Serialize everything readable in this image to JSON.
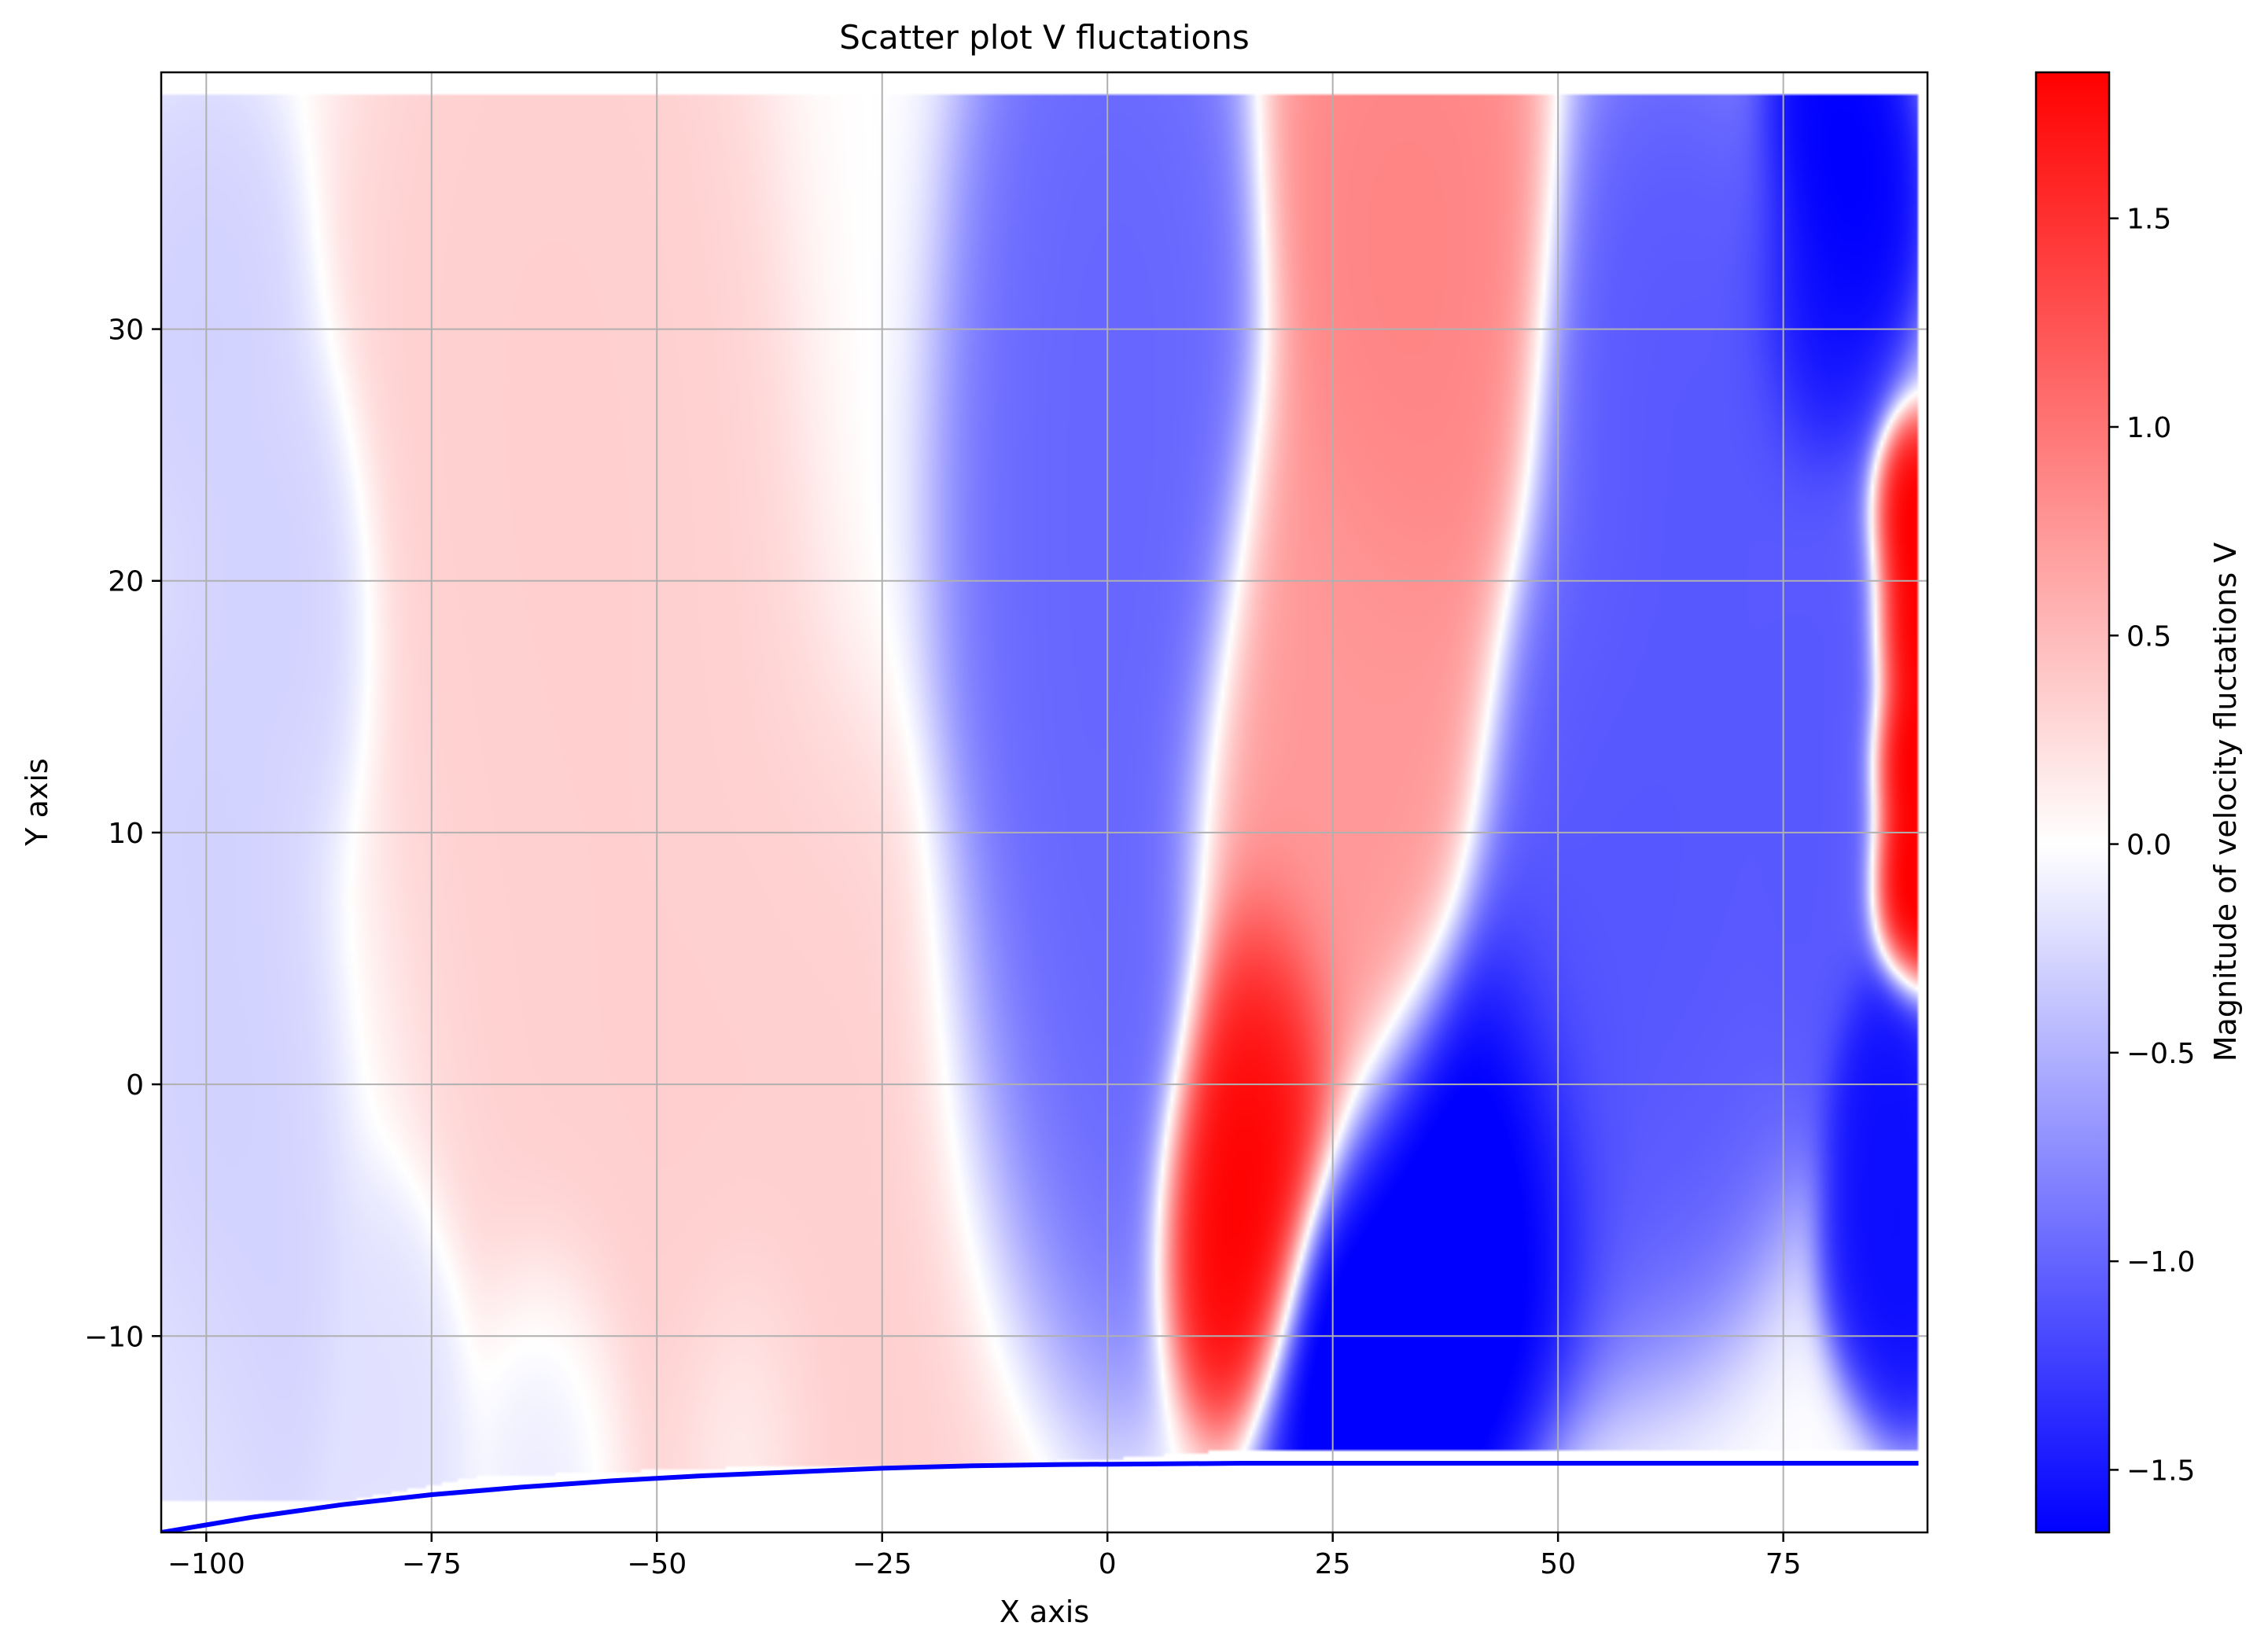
{
  "chart_data": {
    "type": "heatmap",
    "title": "Scatter plot V fluctations",
    "xlabel": "X axis",
    "ylabel": "Y axis",
    "xlim": [
      -105,
      91
    ],
    "ylim": [
      -17.8,
      40.2
    ],
    "x_ticks": [
      {
        "value": -100,
        "label": "−100"
      },
      {
        "value": -75,
        "label": "−75"
      },
      {
        "value": -50,
        "label": "−50"
      },
      {
        "value": -25,
        "label": "−25"
      },
      {
        "value": 0,
        "label": "0"
      },
      {
        "value": 25,
        "label": "25"
      },
      {
        "value": 50,
        "label": "50"
      },
      {
        "value": 75,
        "label": "75"
      }
    ],
    "y_ticks": [
      {
        "value": -10,
        "label": "−10"
      },
      {
        "value": 0,
        "label": "0"
      },
      {
        "value": 10,
        "label": "10"
      },
      {
        "value": 20,
        "label": "20"
      },
      {
        "value": 30,
        "label": "30"
      }
    ],
    "grid": true,
    "colorbar": {
      "label": "Magnitude of velocity fluctations V",
      "colormap": "bwr",
      "range": [
        -1.65,
        1.85
      ],
      "ticks": [
        {
          "value": 1.5,
          "label": "1.5"
        },
        {
          "value": 1.0,
          "label": "1.0"
        },
        {
          "value": 0.5,
          "label": "0.5"
        },
        {
          "value": 0.0,
          "label": "0.0"
        },
        {
          "value": -0.5,
          "label": "−0.5"
        },
        {
          "value": -1.0,
          "label": "−1.0"
        },
        {
          "value": -1.5,
          "label": "−1.5"
        }
      ],
      "colors": {
        "low": "#0000ff",
        "mid": "#ffffff",
        "high": "#ff0000"
      }
    },
    "field_domain": {
      "x": [
        -105,
        90
      ],
      "y_top": 39.3
    },
    "field_lower_boundary": [
      [
        -105,
        -16.6
      ],
      [
        -85,
        -16.6
      ],
      [
        -70,
        -15.6
      ],
      [
        -40,
        -15.2
      ],
      [
        -20,
        -15.2
      ],
      [
        0,
        -14.9
      ],
      [
        15,
        -14.5
      ],
      [
        30,
        -14.5
      ],
      [
        60,
        -14.5
      ],
      [
        80,
        -14.5
      ],
      [
        90,
        -14.5
      ]
    ],
    "field_bands": [
      {
        "name": "left-pale-blue",
        "value": -0.3,
        "points": [
          [
            -100,
            30
          ],
          [
            -100,
            10
          ],
          [
            -95,
            -10
          ],
          [
            -98,
            0
          ],
          [
            -92,
            20
          ]
        ],
        "radius": 7
      },
      {
        "name": "large-pale-red-band",
        "value": 0.35,
        "points": [
          [
            -60,
            35
          ],
          [
            -60,
            25
          ],
          [
            -58,
            15
          ],
          [
            -55,
            5
          ],
          [
            -50,
            -2
          ],
          [
            -40,
            -7
          ],
          [
            -30,
            -9
          ],
          [
            -20,
            -8
          ],
          [
            -65,
            30
          ],
          [
            -57,
            20
          ],
          [
            -47,
            0
          ],
          [
            -35,
            -8
          ]
        ],
        "radius": 12
      },
      {
        "name": "blue-band-mid",
        "value": -1.0,
        "points": [
          [
            0,
            35
          ],
          [
            -2,
            25
          ],
          [
            -2,
            15
          ],
          [
            -1,
            7
          ],
          [
            -3,
            2
          ],
          [
            -7,
            -2
          ],
          [
            3,
            30
          ],
          [
            3,
            20
          ]
        ],
        "radius": 9
      },
      {
        "name": "red-column-top",
        "value": 0.9,
        "points": [
          [
            30,
            36
          ],
          [
            33,
            30
          ],
          [
            31,
            24
          ],
          [
            37,
            35
          ]
        ],
        "radius": 8
      },
      {
        "name": "red-mid",
        "value": 0.75,
        "points": [
          [
            25,
            18
          ],
          [
            28,
            12
          ],
          [
            22,
            12
          ],
          [
            27,
            6
          ],
          [
            30,
            15
          ],
          [
            20,
            8
          ]
        ],
        "radius": 8
      },
      {
        "name": "red-core",
        "value": 1.9,
        "points": [
          [
            18,
            3
          ],
          [
            16,
            -2
          ],
          [
            14,
            -6
          ],
          [
            16,
            0
          ],
          [
            19,
            1
          ],
          [
            13,
            -4
          ]
        ],
        "radius": 5
      },
      {
        "name": "blue-right-band",
        "value": -1.1,
        "points": [
          [
            62,
            30
          ],
          [
            65,
            20
          ],
          [
            60,
            12
          ],
          [
            70,
            25
          ],
          [
            55,
            8
          ],
          [
            70,
            10
          ],
          [
            52,
            3
          ],
          [
            62,
            4
          ]
        ],
        "radius": 9
      },
      {
        "name": "blue-core",
        "value": -1.8,
        "points": [
          [
            35,
            -5
          ],
          [
            32,
            -10
          ],
          [
            40,
            -4
          ],
          [
            28,
            -12
          ],
          [
            45,
            -2
          ],
          [
            36,
            -8
          ]
        ],
        "radius": 7
      },
      {
        "name": "blue-top-right",
        "value": -1.7,
        "points": [
          [
            80,
            38
          ],
          [
            83,
            35
          ],
          [
            78,
            30
          ]
        ],
        "radius": 5
      },
      {
        "name": "blue-right-mid",
        "value": -1.1,
        "points": [
          [
            76,
            15
          ],
          [
            80,
            18
          ],
          [
            78,
            10
          ],
          [
            77,
            5
          ]
        ],
        "radius": 5
      },
      {
        "name": "red-right-edge",
        "value": 2.0,
        "points": [
          [
            89,
            18
          ],
          [
            89,
            13
          ],
          [
            89,
            22
          ],
          [
            89,
            8
          ]
        ],
        "radius": 3
      },
      {
        "name": "blue-bottom-right",
        "value": -1.6,
        "points": [
          [
            88,
            -3
          ],
          [
            86,
            -6
          ],
          [
            89,
            -8
          ],
          [
            85,
            0
          ]
        ],
        "radius": 4
      },
      {
        "name": "pale-blue-bottom-strip",
        "value": -0.2,
        "points": [
          [
            -80,
            -13
          ],
          [
            -60,
            -13
          ],
          [
            -40,
            -13
          ],
          [
            -100,
            -14
          ]
        ],
        "radius": 6
      }
    ],
    "boundary_line": {
      "color": "#0000ff",
      "points": [
        [
          -105,
          -17.8
        ],
        [
          -95,
          -17.2
        ],
        [
          -85,
          -16.7
        ],
        [
          -75,
          -16.3
        ],
        [
          -65,
          -16.0
        ],
        [
          -55,
          -15.75
        ],
        [
          -45,
          -15.55
        ],
        [
          -35,
          -15.4
        ],
        [
          -25,
          -15.25
        ],
        [
          -15,
          -15.15
        ],
        [
          -5,
          -15.1
        ],
        [
          5,
          -15.08
        ],
        [
          15,
          -15.05
        ],
        [
          30,
          -15.05
        ],
        [
          50,
          -15.05
        ],
        [
          70,
          -15.05
        ],
        [
          90,
          -15.05
        ]
      ]
    }
  }
}
